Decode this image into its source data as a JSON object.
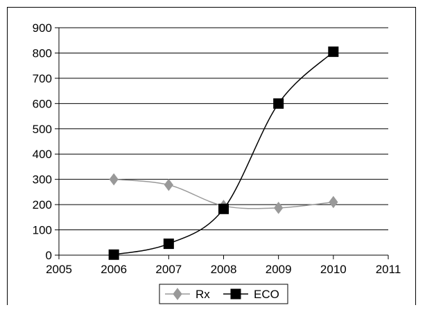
{
  "chart_data": {
    "type": "line",
    "title": "",
    "xlabel": "",
    "ylabel": "",
    "xlim": [
      2005,
      2011
    ],
    "ylim": [
      0,
      900
    ],
    "x_ticks": [
      2005,
      2006,
      2007,
      2008,
      2009,
      2010,
      2011
    ],
    "y_ticks": [
      0,
      100,
      200,
      300,
      400,
      500,
      600,
      700,
      800,
      900
    ],
    "grid": "horizontal",
    "legend_position": "bottom",
    "series": [
      {
        "name": "Rx",
        "marker": "diamond",
        "color": "#999999",
        "smooth": true,
        "x": [
          2006,
          2007,
          2008,
          2009,
          2010
        ],
        "values": [
          300,
          278,
          195,
          187,
          210
        ]
      },
      {
        "name": "ECO",
        "marker": "square",
        "color": "#000000",
        "smooth": true,
        "x": [
          2006,
          2007,
          2008,
          2009,
          2010
        ],
        "values": [
          2,
          45,
          183,
          600,
          805
        ]
      }
    ]
  }
}
